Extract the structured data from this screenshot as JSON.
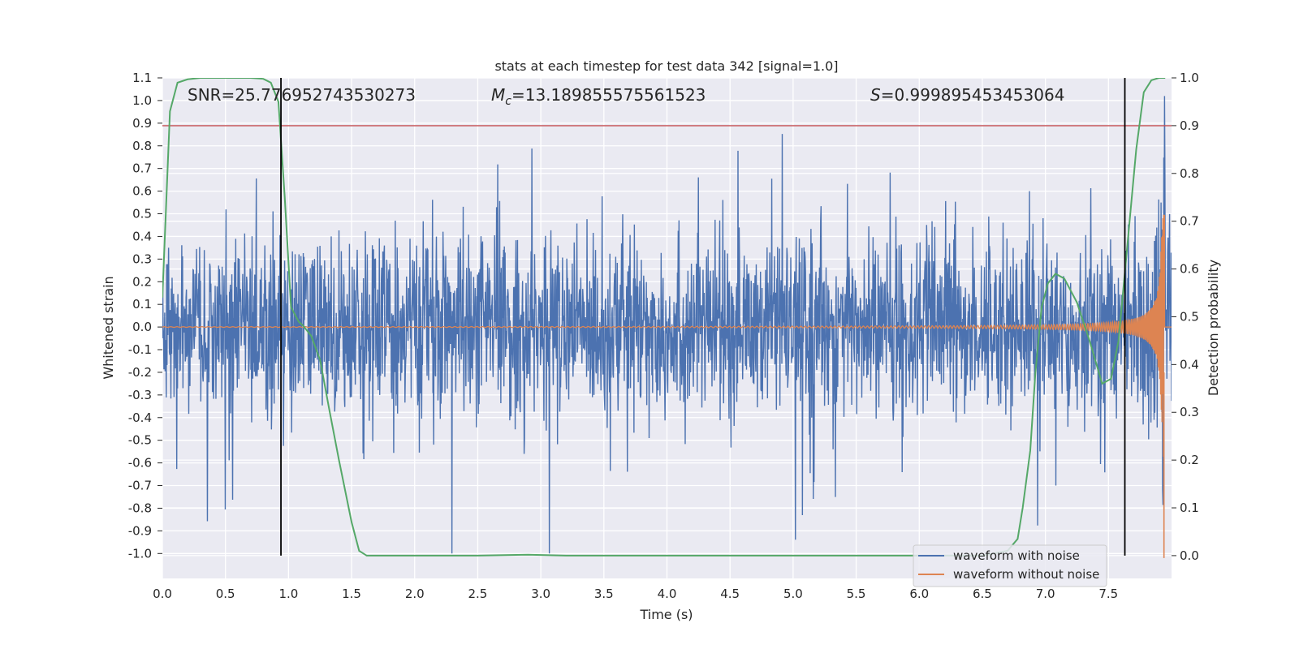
{
  "chart_data": {
    "type": "line",
    "title": "stats at each timestep for test data 342 [signal=1.0]",
    "xlabel": "Time (s)",
    "ylabel": "Whitened strain",
    "y2label": "Detection probability",
    "xlim": [
      0.0,
      8.0
    ],
    "ylim": [
      -1.11,
      1.1
    ],
    "y2lim": [
      -0.0477,
      1.0
    ],
    "xticks": [
      "0.0",
      "0.5",
      "1.0",
      "1.5",
      "2.0",
      "2.5",
      "3.0",
      "3.5",
      "4.0",
      "4.5",
      "5.0",
      "5.5",
      "6.0",
      "6.5",
      "7.0",
      "7.5"
    ],
    "yticks": [
      "1.1",
      "1.0",
      "0.9",
      "0.8",
      "0.7",
      "0.6",
      "0.5",
      "0.4",
      "0.3",
      "0.2",
      "0.1",
      "0.0",
      "-0.1",
      "-0.2",
      "-0.3",
      "-0.4",
      "-0.5",
      "-0.6",
      "-0.7",
      "-0.8",
      "-0.9",
      "-1.0"
    ],
    "y2ticks": [
      "1.0",
      "0.9",
      "0.8",
      "0.7",
      "0.6",
      "0.5",
      "0.4",
      "0.3",
      "0.2",
      "0.1",
      "0.0"
    ],
    "annotations": {
      "snr": "SNR=25.776952743530273",
      "mc_symbol": "M",
      "mc_sub": "c",
      "mc_value": "=13.189855575561523",
      "s_symbol": "S",
      "s_value": "=0.999895453453064"
    },
    "threshold": {
      "value": 0.9,
      "axis": "right",
      "color": "#c44e52"
    },
    "vlines": [
      0.94,
      7.63
    ],
    "waveform_merger_time": 7.94,
    "waveform_noise_sigma": 0.19,
    "waveform_template_amplitude": 0.72,
    "series": [
      {
        "name": "waveform with noise",
        "color": "#4c72b0",
        "axis": "left"
      },
      {
        "name": "waveform without noise",
        "color": "#dd8452",
        "axis": "left"
      },
      {
        "name": "detection probability",
        "color": "#55a868",
        "axis": "right",
        "x": [
          0.0,
          0.06,
          0.12,
          0.2,
          0.3,
          0.5,
          0.7,
          0.8,
          0.86,
          0.92,
          0.97,
          1.02,
          1.08,
          1.12,
          1.18,
          1.25,
          1.32,
          1.4,
          1.5,
          1.56,
          1.62,
          1.7,
          2.5,
          2.9,
          3.2,
          4.0,
          5.0,
          6.0,
          6.5,
          6.7,
          6.78,
          6.82,
          6.88,
          6.92,
          6.97,
          7.02,
          7.08,
          7.15,
          7.25,
          7.35,
          7.45,
          7.52,
          7.58,
          7.65,
          7.72,
          7.78,
          7.84,
          7.9,
          7.95
        ],
        "y": [
          0.54,
          0.93,
          0.99,
          0.997,
          1.0,
          1.0,
          1.0,
          0.998,
          0.99,
          0.95,
          0.75,
          0.52,
          0.49,
          0.48,
          0.46,
          0.41,
          0.31,
          0.2,
          0.07,
          0.01,
          0.0,
          0.0,
          0.0,
          0.002,
          0.0,
          0.0,
          0.0,
          0.0,
          0.0,
          0.01,
          0.035,
          0.1,
          0.22,
          0.38,
          0.52,
          0.57,
          0.59,
          0.58,
          0.53,
          0.45,
          0.36,
          0.37,
          0.45,
          0.65,
          0.85,
          0.97,
          0.995,
          1.0,
          1.0
        ]
      }
    ]
  }
}
